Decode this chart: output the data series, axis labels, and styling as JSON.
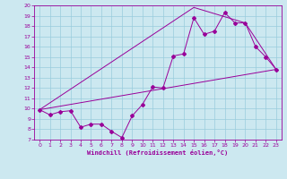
{
  "xlabel": "Windchill (Refroidissement éolien,°C)",
  "bg_color": "#cce8f0",
  "line_color": "#990099",
  "grid_color": "#99ccdd",
  "xlim": [
    -0.5,
    23.5
  ],
  "ylim": [
    7,
    20
  ],
  "xticks": [
    0,
    1,
    2,
    3,
    4,
    5,
    6,
    7,
    8,
    9,
    10,
    11,
    12,
    13,
    14,
    15,
    16,
    17,
    18,
    19,
    20,
    21,
    22,
    23
  ],
  "yticks": [
    7,
    8,
    9,
    10,
    11,
    12,
    13,
    14,
    15,
    16,
    17,
    18,
    19,
    20
  ],
  "line1_x": [
    0,
    1,
    2,
    3,
    4,
    5,
    6,
    7,
    8,
    9,
    10,
    11,
    12,
    13,
    14,
    15,
    16,
    17,
    18,
    19,
    20,
    21,
    22,
    23
  ],
  "line1_y": [
    9.9,
    9.4,
    9.7,
    9.8,
    8.2,
    8.5,
    8.5,
    7.8,
    7.2,
    9.3,
    10.4,
    12.1,
    12.0,
    15.1,
    15.3,
    18.8,
    17.2,
    17.5,
    19.3,
    18.3,
    18.3,
    16.0,
    15.0,
    13.8
  ],
  "line2_x": [
    0,
    23
  ],
  "line2_y": [
    9.9,
    13.8
  ],
  "line3_x": [
    0,
    15,
    20,
    23
  ],
  "line3_y": [
    9.9,
    19.8,
    18.3,
    13.8
  ]
}
